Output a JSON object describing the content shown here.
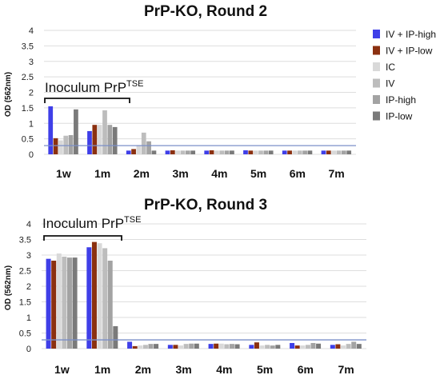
{
  "chart_data": [
    {
      "type": "bar",
      "title": "PrP-KO, Round 2",
      "ylabel": "OD (562nm)",
      "xlabel": "",
      "ylim": [
        0,
        4
      ],
      "yticks": [
        "0",
        "0.5",
        "1",
        "1.5",
        "2",
        "2.5",
        "3",
        "3.5",
        "4"
      ],
      "grid": true,
      "threshold": 0.28,
      "annotation": {
        "text": "Inoculum PrP",
        "sup": "TSE"
      },
      "categories": [
        "1w",
        "1m",
        "2m",
        "3m",
        "4m",
        "5m",
        "6m",
        "7m"
      ],
      "series": [
        {
          "name": "IV + IP-high",
          "values": [
            1.55,
            0.75,
            0.12,
            0.12,
            0.12,
            0.13,
            0.12,
            0.12
          ]
        },
        {
          "name": "IV + IP-low",
          "values": [
            0.52,
            0.95,
            0.17,
            0.13,
            0.13,
            0.12,
            0.12,
            0.12
          ]
        },
        {
          "name": "IC",
          "values": [
            0.45,
            0.95,
            0.3,
            0.12,
            0.12,
            0.12,
            0.12,
            0.12
          ]
        },
        {
          "name": "IV",
          "values": [
            0.6,
            1.42,
            0.7,
            0.12,
            0.12,
            0.12,
            0.12,
            0.12
          ]
        },
        {
          "name": "IP-high",
          "values": [
            0.62,
            0.95,
            0.42,
            0.12,
            0.12,
            0.12,
            0.12,
            0.12
          ]
        },
        {
          "name": "IP-low",
          "values": [
            1.45,
            0.88,
            0.12,
            0.12,
            0.12,
            0.12,
            0.12,
            0.12
          ]
        }
      ]
    },
    {
      "type": "bar",
      "title": "PrP-KO, Round 3",
      "ylabel": "OD (562nm)",
      "xlabel": "",
      "ylim": [
        0,
        4
      ],
      "yticks": [
        "0",
        "0.5",
        "1",
        "1.5",
        "2",
        "2.5",
        "3",
        "3.5",
        "4"
      ],
      "grid": true,
      "threshold": 0.28,
      "annotation": {
        "text": "Inoculum PrP",
        "sup": "TSE"
      },
      "categories": [
        "1w",
        "1m",
        "2m",
        "3m",
        "4m",
        "5m",
        "6m",
        "7m"
      ],
      "series": [
        {
          "name": "IV + IP-high",
          "values": [
            2.88,
            3.25,
            0.22,
            0.12,
            0.15,
            0.12,
            0.18,
            0.12
          ]
        },
        {
          "name": "IV + IP-low",
          "values": [
            2.82,
            3.42,
            0.08,
            0.12,
            0.16,
            0.2,
            0.1,
            0.14
          ]
        },
        {
          "name": "IC",
          "values": [
            3.05,
            3.38,
            0.1,
            0.1,
            0.16,
            0.1,
            0.1,
            0.1
          ]
        },
        {
          "name": "IV",
          "values": [
            2.95,
            3.22,
            0.12,
            0.15,
            0.14,
            0.12,
            0.12,
            0.15
          ]
        },
        {
          "name": "IP-high",
          "values": [
            2.92,
            2.82,
            0.15,
            0.16,
            0.15,
            0.1,
            0.18,
            0.22
          ]
        },
        {
          "name": "IP-low",
          "values": [
            2.92,
            0.72,
            0.15,
            0.16,
            0.14,
            0.12,
            0.16,
            0.15
          ]
        }
      ]
    }
  ],
  "series_colors": [
    "#3f3fe8",
    "#8b3010",
    "#d9d9d9",
    "#bdbdbd",
    "#a3a3a3",
    "#7a7a7a"
  ],
  "colors": {
    "grid": "#dedede",
    "threshold": "#7b8fc8",
    "bracket": "#111111"
  }
}
